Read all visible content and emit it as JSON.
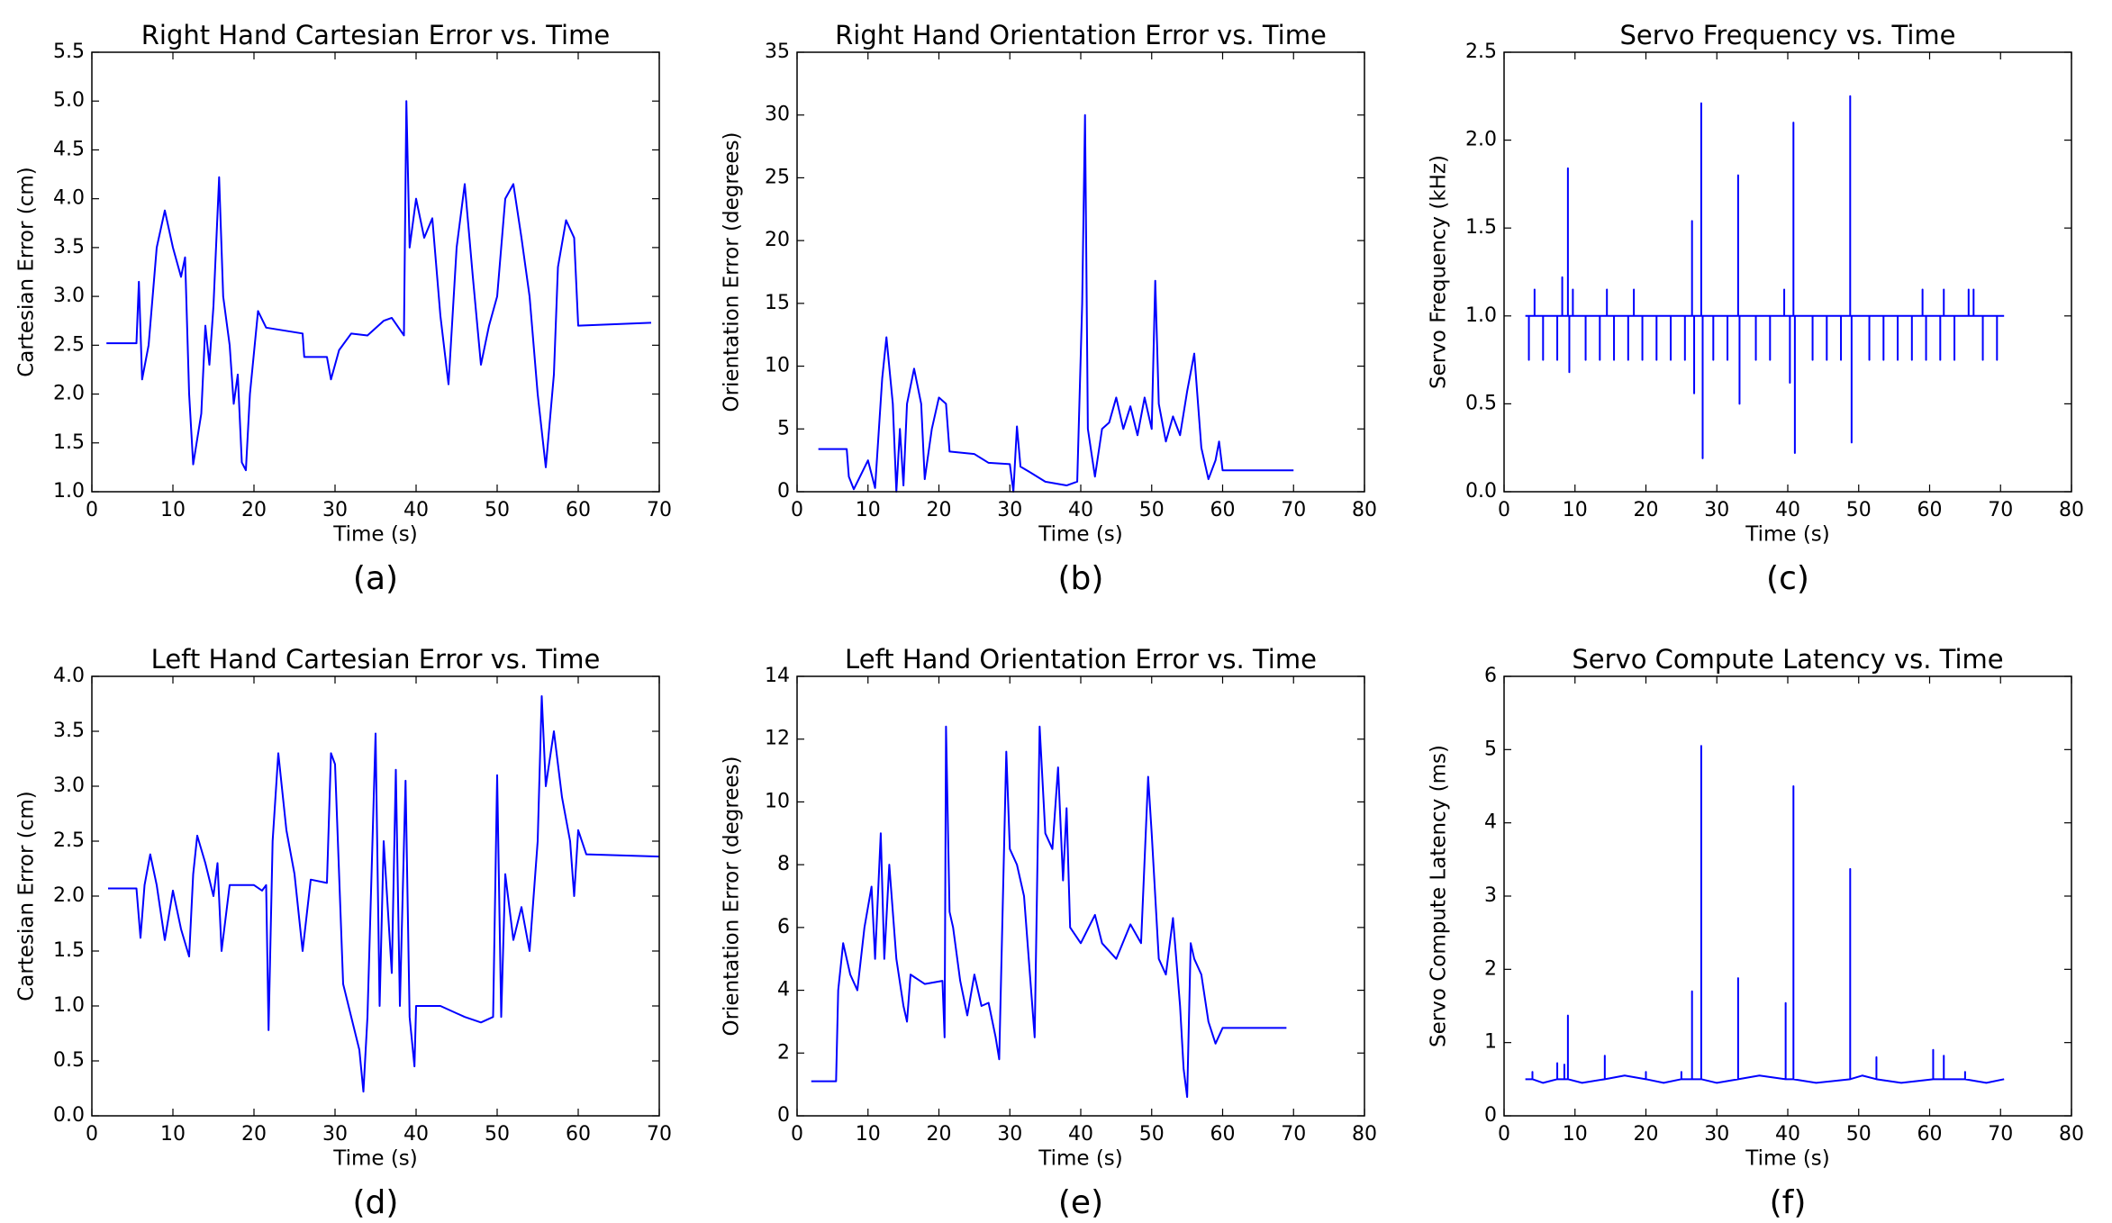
{
  "chart_data": [
    {
      "type": "line",
      "title": "Right Hand Cartesian Error vs. Time",
      "x_label": "Time (s)",
      "y_label": "Cartesian Error (cm)",
      "caption": "(a)",
      "color": "#0000ff",
      "xlim": [
        0,
        70
      ],
      "xticks": [
        0,
        10,
        20,
        30,
        40,
        50,
        60,
        70
      ],
      "ylim": [
        1.0,
        5.5
      ],
      "yticks": [
        {
          "value": 1.0,
          "label": "1.0"
        },
        {
          "value": 1.5,
          "label": "1.5"
        },
        {
          "value": 2.0,
          "label": "2.0"
        },
        {
          "value": 2.5,
          "label": "2.5"
        },
        {
          "value": 3.0,
          "label": "3.0"
        },
        {
          "value": 3.5,
          "label": "3.5"
        },
        {
          "value": 4.0,
          "label": "4.0"
        },
        {
          "value": 4.5,
          "label": "4.5"
        },
        {
          "value": 5.0,
          "label": "5.0"
        },
        {
          "value": 5.5,
          "label": "5.5"
        }
      ],
      "x": [
        1.8,
        5.5,
        5.8,
        6.2,
        7,
        8,
        9,
        10,
        11,
        11.5,
        12,
        12.5,
        13.5,
        14,
        14.5,
        15,
        15.7,
        16.2,
        17,
        17.5,
        18,
        18.5,
        19,
        19.5,
        20.5,
        21.5,
        26,
        26.2,
        29,
        29.5,
        30.5,
        32,
        34,
        36,
        37,
        38.5,
        38.8,
        39.2,
        40,
        41,
        42,
        43,
        44,
        45,
        46,
        47,
        48,
        49,
        50,
        51,
        52,
        53,
        54,
        55,
        56,
        57,
        57.5,
        58.5,
        59.5,
        60,
        69
      ],
      "values": [
        2.52,
        2.52,
        3.15,
        2.15,
        2.5,
        3.5,
        3.88,
        3.5,
        3.2,
        3.4,
        2.0,
        1.28,
        1.8,
        2.7,
        2.3,
        2.9,
        4.22,
        3.0,
        2.5,
        1.9,
        2.2,
        1.3,
        1.22,
        2.0,
        2.85,
        2.68,
        2.62,
        2.38,
        2.38,
        2.15,
        2.45,
        2.62,
        2.6,
        2.75,
        2.78,
        2.6,
        5.0,
        3.5,
        4.0,
        3.6,
        3.8,
        2.8,
        2.1,
        3.5,
        4.15,
        3.2,
        2.3,
        2.7,
        3.0,
        4.0,
        4.15,
        3.6,
        3.0,
        2.0,
        1.25,
        2.2,
        3.3,
        3.78,
        3.6,
        2.7,
        2.73
      ]
    },
    {
      "type": "line",
      "title": "Right Hand Orientation Error vs. Time",
      "x_label": "Time (s)",
      "y_label": "Orientation Error (degrees)",
      "caption": "(b)",
      "color": "#0000ff",
      "xlim": [
        0,
        80
      ],
      "xticks": [
        0,
        10,
        20,
        30,
        40,
        50,
        60,
        70,
        80
      ],
      "ylim": [
        0,
        35
      ],
      "yticks": [
        0,
        5,
        10,
        15,
        20,
        25,
        30,
        35
      ],
      "x": [
        3,
        7,
        7.3,
        8,
        10,
        11,
        12,
        12.6,
        13.5,
        14,
        14.5,
        15,
        15.5,
        16.5,
        17.5,
        18,
        19,
        20,
        21,
        21.5,
        25,
        27,
        30,
        30.5,
        31,
        31.5,
        33,
        35,
        38,
        39.5,
        40.2,
        40.6,
        41,
        42,
        43,
        44,
        45,
        46,
        47,
        48,
        49,
        50,
        50.5,
        51,
        52,
        53,
        54,
        55,
        56,
        57,
        58,
        59,
        59.5,
        60,
        70
      ],
      "values": [
        3.4,
        3.4,
        1.2,
        0.2,
        2.5,
        0.3,
        9,
        12.3,
        7,
        0,
        5,
        0.5,
        7,
        9.8,
        7,
        1,
        5,
        7.5,
        7,
        3.2,
        3,
        2.3,
        2.2,
        0,
        5.2,
        2,
        1.5,
        0.8,
        0.5,
        0.8,
        15,
        30,
        5,
        1.2,
        5,
        5.5,
        7.5,
        5,
        6.8,
        4.5,
        7.5,
        5,
        16.8,
        7,
        4,
        6,
        4.5,
        8,
        11,
        3.5,
        1,
        2.5,
        4,
        1.7,
        1.7
      ]
    },
    {
      "type": "line",
      "title": "Servo Frequency vs. Time",
      "x_label": "Time (s)",
      "y_label": "Servo Frequency (kHz)",
      "caption": "(c)",
      "color": "#0000ff",
      "xlim": [
        0,
        80
      ],
      "xticks": [
        0,
        10,
        20,
        30,
        40,
        50,
        60,
        70,
        80
      ],
      "ylim": [
        0.0,
        2.5
      ],
      "yticks": [
        {
          "value": 0.0,
          "label": "0.0"
        },
        {
          "value": 0.5,
          "label": "0.5"
        },
        {
          "value": 1.0,
          "label": "1.0"
        },
        {
          "value": 1.5,
          "label": "1.5"
        },
        {
          "value": 2.0,
          "label": "2.0"
        },
        {
          "value": 2.5,
          "label": "2.5"
        }
      ],
      "x": [
        3,
        3.5,
        3.5,
        3.5,
        4.3,
        4.3,
        4.3,
        5.5,
        5.5,
        5.5,
        7.5,
        7.5,
        7.5,
        8.2,
        8.2,
        8.2,
        9,
        9,
        9,
        9.2,
        9.2,
        9.2,
        9.7,
        9.7,
        9.7,
        11.5,
        11.5,
        11.5,
        13.5,
        13.5,
        13.5,
        14.5,
        14.5,
        14.5,
        15.5,
        15.5,
        15.5,
        17.5,
        17.5,
        17.5,
        18.3,
        18.3,
        18.3,
        19.5,
        19.5,
        19.5,
        21.5,
        21.5,
        21.5,
        23.5,
        23.5,
        23.5,
        25.5,
        25.5,
        25.5,
        26.5,
        26.5,
        26.5,
        26.8,
        26.8,
        26.8,
        27.8,
        27.8,
        27.8,
        28,
        28,
        28,
        29.5,
        29.5,
        29.5,
        31.5,
        31.5,
        31.5,
        33,
        33,
        33,
        33.2,
        33.2,
        33.2,
        35.5,
        35.5,
        35.5,
        37.5,
        37.5,
        37.5,
        39.5,
        39.5,
        39.5,
        40.3,
        40.3,
        40.3,
        40.8,
        40.8,
        40.8,
        41,
        41,
        41,
        43.5,
        43.5,
        43.5,
        45.5,
        45.5,
        45.5,
        47.5,
        47.5,
        47.5,
        48.8,
        48.8,
        48.8,
        49,
        49,
        49,
        51.5,
        51.5,
        51.5,
        53.5,
        53.5,
        53.5,
        55.5,
        55.5,
        55.5,
        57.5,
        57.5,
        57.5,
        59,
        59,
        59,
        59.5,
        59.5,
        59.5,
        61.5,
        61.5,
        61.5,
        62,
        62,
        62,
        63.5,
        63.5,
        63.5,
        65.5,
        65.5,
        65.5,
        66.2,
        66.2,
        66.2,
        67.5,
        67.5,
        67.5,
        69.5,
        69.5,
        69.5,
        70.5
      ],
      "values": [
        1.0,
        1.0,
        0.75,
        1.0,
        1.0,
        1.15,
        1.0,
        1.0,
        0.75,
        1.0,
        1.0,
        0.75,
        1.0,
        1.0,
        1.22,
        1.0,
        1.0,
        1.84,
        1.0,
        1.0,
        0.68,
        1.0,
        1.0,
        1.15,
        1.0,
        1.0,
        0.75,
        1.0,
        1.0,
        0.75,
        1.0,
        1.0,
        1.15,
        1.0,
        1.0,
        0.75,
        1.0,
        1.0,
        0.75,
        1.0,
        1.0,
        1.15,
        1.0,
        1.0,
        0.75,
        1.0,
        1.0,
        0.75,
        1.0,
        1.0,
        0.75,
        1.0,
        1.0,
        0.75,
        1.0,
        1.0,
        1.54,
        1.0,
        1.0,
        0.56,
        1.0,
        1.0,
        2.21,
        1.0,
        1.0,
        0.19,
        1.0,
        1.0,
        0.75,
        1.0,
        1.0,
        0.75,
        1.0,
        1.0,
        1.8,
        1.0,
        1.0,
        0.5,
        1.0,
        1.0,
        0.75,
        1.0,
        1.0,
        0.75,
        1.0,
        1.0,
        1.15,
        1.0,
        1.0,
        0.62,
        1.0,
        1.0,
        2.1,
        1.0,
        1.0,
        0.22,
        1.0,
        1.0,
        0.75,
        1.0,
        1.0,
        0.75,
        1.0,
        1.0,
        0.75,
        1.0,
        1.0,
        2.25,
        1.0,
        1.0,
        0.28,
        1.0,
        1.0,
        0.75,
        1.0,
        1.0,
        0.75,
        1.0,
        1.0,
        0.75,
        1.0,
        1.0,
        0.75,
        1.0,
        1.0,
        1.15,
        1.0,
        1.0,
        0.75,
        1.0,
        1.0,
        0.75,
        1.0,
        1.0,
        1.15,
        1.0,
        1.0,
        0.75,
        1.0,
        1.0,
        1.15,
        1.0,
        1.0,
        1.15,
        1.0,
        1.0,
        0.75,
        1.0,
        1.0,
        0.75,
        1.0,
        1.0
      ]
    },
    {
      "type": "line",
      "title": "Left Hand Cartesian Error vs. Time",
      "x_label": "Time (s)",
      "y_label": "Cartesian Error (cm)",
      "caption": "(d)",
      "color": "#0000ff",
      "xlim": [
        0,
        70
      ],
      "xticks": [
        0,
        10,
        20,
        30,
        40,
        50,
        60,
        70
      ],
      "ylim": [
        0.0,
        4.0
      ],
      "yticks": [
        {
          "value": 0.0,
          "label": "0.0"
        },
        {
          "value": 0.5,
          "label": "0.5"
        },
        {
          "value": 1.0,
          "label": "1.0"
        },
        {
          "value": 1.5,
          "label": "1.5"
        },
        {
          "value": 2.0,
          "label": "2.0"
        },
        {
          "value": 2.5,
          "label": "2.5"
        },
        {
          "value": 3.0,
          "label": "3.0"
        },
        {
          "value": 3.5,
          "label": "3.5"
        },
        {
          "value": 4.0,
          "label": "4.0"
        }
      ],
      "x": [
        2,
        5.5,
        6,
        6.5,
        7.2,
        8,
        9,
        10,
        11,
        12,
        12.5,
        13,
        14,
        15,
        15.5,
        16,
        17,
        20,
        21,
        21.5,
        21.8,
        22.3,
        23,
        24,
        25,
        26,
        27,
        29,
        29.5,
        30,
        31,
        32,
        33,
        33.5,
        34,
        35,
        35.5,
        36,
        37,
        37.5,
        38,
        38.7,
        39.2,
        39.8,
        40,
        43,
        46,
        48,
        49.5,
        50,
        50.5,
        51,
        52,
        53,
        54,
        55,
        55.5,
        56,
        57,
        58,
        59,
        59.5,
        60,
        61,
        70
      ],
      "values": [
        2.07,
        2.07,
        1.62,
        2.1,
        2.38,
        2.1,
        1.6,
        2.05,
        1.7,
        1.45,
        2.2,
        2.55,
        2.3,
        2.0,
        2.3,
        1.5,
        2.1,
        2.1,
        2.05,
        2.1,
        0.78,
        2.5,
        3.3,
        2.6,
        2.2,
        1.5,
        2.15,
        2.12,
        3.3,
        3.2,
        1.2,
        0.9,
        0.6,
        0.22,
        0.9,
        3.48,
        1.0,
        2.5,
        1.3,
        3.15,
        1.0,
        3.05,
        0.9,
        0.45,
        1.0,
        1.0,
        0.9,
        0.85,
        0.9,
        3.1,
        0.9,
        2.2,
        1.6,
        1.9,
        1.5,
        2.5,
        3.82,
        3.0,
        3.5,
        2.9,
        2.5,
        2.0,
        2.6,
        2.38,
        2.36
      ]
    },
    {
      "type": "line",
      "title": "Left Hand Orientation Error vs. Time",
      "x_label": "Time (s)",
      "y_label": "Orientation Error (degrees)",
      "caption": "(e)",
      "color": "#0000ff",
      "xlim": [
        0,
        80
      ],
      "xticks": [
        0,
        10,
        20,
        30,
        40,
        50,
        60,
        70,
        80
      ],
      "ylim": [
        0,
        14
      ],
      "yticks": [
        0,
        2,
        4,
        6,
        8,
        10,
        12,
        14
      ],
      "x": [
        2,
        5.5,
        5.8,
        6.5,
        7.5,
        8.5,
        9.5,
        10.5,
        11,
        11.8,
        12.3,
        13,
        14,
        15,
        15.5,
        16,
        18,
        20.5,
        20.8,
        21,
        21.5,
        22,
        23,
        24,
        25,
        26,
        27,
        28,
        28.5,
        29.5,
        30,
        31,
        32,
        33,
        33.5,
        34.2,
        35,
        36,
        36.8,
        37.5,
        38,
        38.5,
        40,
        42,
        43,
        45,
        47,
        48.5,
        49.5,
        50,
        51,
        52,
        53,
        54,
        54.5,
        55,
        55.5,
        56,
        57,
        58,
        59,
        60,
        69
      ],
      "values": [
        1.1,
        1.1,
        4,
        5.5,
        4.5,
        4,
        6,
        7.3,
        5,
        9,
        5,
        8,
        5,
        3.5,
        3,
        4.5,
        4.2,
        4.3,
        2.5,
        12.4,
        6.5,
        6,
        4.3,
        3.2,
        4.5,
        3.5,
        3.6,
        2.5,
        1.8,
        11.6,
        8.5,
        8,
        7,
        4,
        2.5,
        12.4,
        9,
        8.5,
        11.1,
        7.5,
        9.8,
        6,
        5.5,
        6.4,
        5.5,
        5,
        6.1,
        5.5,
        10.8,
        9,
        5,
        4.5,
        6.3,
        3.5,
        1.5,
        0.6,
        5.5,
        5,
        4.5,
        3,
        2.3,
        2.8,
        2.8
      ]
    },
    {
      "type": "line",
      "title": "Servo Compute Latency vs. Time",
      "x_label": "Time (s)",
      "y_label": "Servo Compute Latency (ms)",
      "caption": "(f)",
      "color": "#0000ff",
      "xlim": [
        0,
        80
      ],
      "xticks": [
        0,
        10,
        20,
        30,
        40,
        50,
        60,
        70,
        80
      ],
      "ylim": [
        0,
        6
      ],
      "yticks": [
        0,
        1,
        2,
        3,
        4,
        5,
        6
      ],
      "x": [
        3,
        4,
        4,
        4,
        5.5,
        7.5,
        7.5,
        7.5,
        8.5,
        8.5,
        8.5,
        9,
        9,
        9,
        11,
        14.2,
        14.2,
        14.2,
        17,
        20,
        20,
        20,
        22.5,
        25,
        25,
        25,
        26.5,
        26.5,
        26.5,
        27.8,
        27.8,
        27.8,
        30,
        33,
        33,
        33,
        36,
        39.7,
        39.7,
        39.7,
        40.8,
        40.8,
        40.8,
        44,
        48.8,
        48.8,
        48.8,
        50.5,
        52.5,
        52.5,
        52.5,
        56,
        60.5,
        60.5,
        60.5,
        62,
        62,
        62,
        65,
        65,
        65,
        68,
        70.5
      ],
      "values": [
        0.5,
        0.5,
        0.6,
        0.5,
        0.45,
        0.5,
        0.72,
        0.5,
        0.5,
        0.7,
        0.5,
        0.5,
        1.37,
        0.5,
        0.45,
        0.5,
        0.82,
        0.5,
        0.55,
        0.5,
        0.6,
        0.5,
        0.45,
        0.5,
        0.6,
        0.5,
        0.5,
        1.7,
        0.5,
        0.5,
        5.05,
        0.5,
        0.45,
        0.5,
        1.88,
        0.5,
        0.55,
        0.5,
        1.54,
        0.5,
        0.5,
        4.5,
        0.5,
        0.45,
        0.5,
        3.37,
        0.5,
        0.55,
        0.5,
        0.8,
        0.5,
        0.45,
        0.5,
        0.9,
        0.5,
        0.5,
        0.82,
        0.5,
        0.5,
        0.6,
        0.5,
        0.45,
        0.5
      ]
    }
  ]
}
